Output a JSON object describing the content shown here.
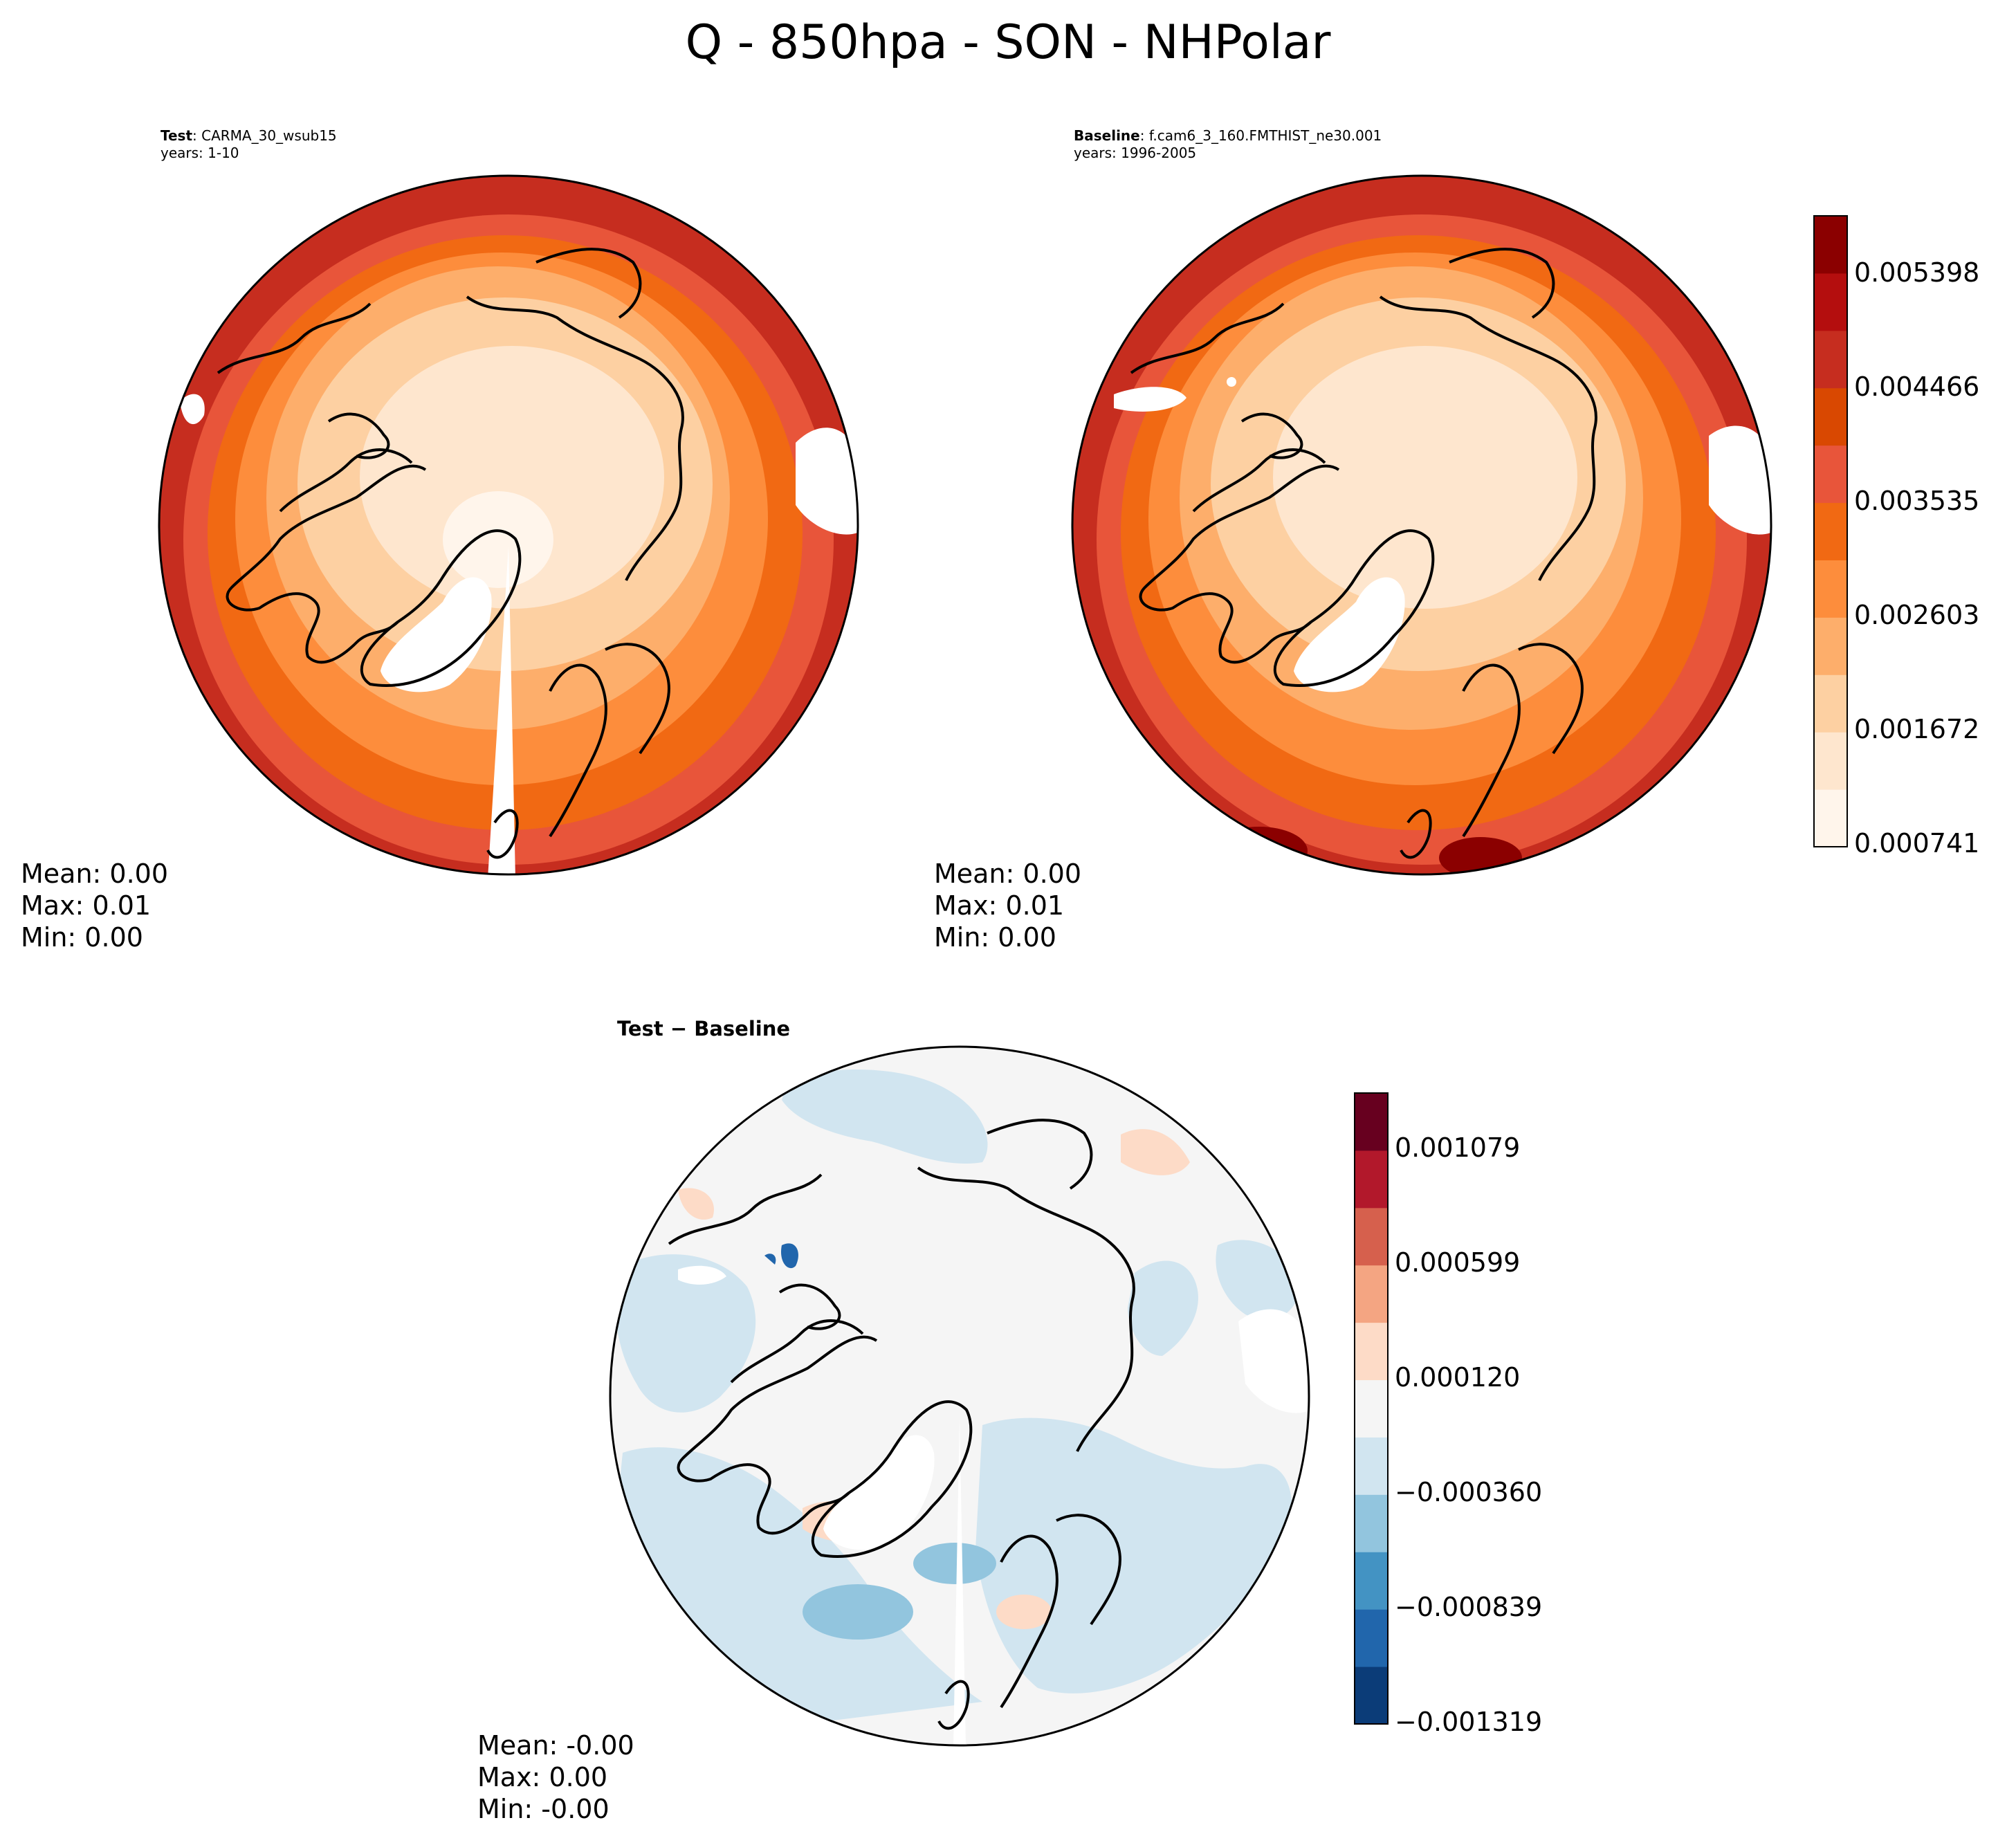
{
  "figure": {
    "title": "Q - 850hpa - SON - NHPolar"
  },
  "panels": {
    "test": {
      "label_bold": "Test",
      "label_rest": ": CARMA_30_wsub15",
      "years": "years: 1-10",
      "stats": {
        "mean": "Mean:  0.00",
        "max": "Max:  0.01",
        "min": "Min:  0.00"
      }
    },
    "baseline": {
      "label_bold": "Baseline",
      "label_rest": ": f.cam6_3_160.FMTHIST_ne30.001",
      "years": "years: 1996-2005",
      "stats": {
        "mean": "Mean:  0.00",
        "max": "Max:  0.01",
        "min": "Min:  0.00"
      }
    },
    "difference": {
      "title": "Test − Baseline",
      "stats": {
        "mean": "Mean: -0.00",
        "max": "Max:  0.00",
        "min": "Min: -0.00"
      }
    }
  },
  "colorbars": {
    "main": {
      "ticks": [
        "0.005398",
        "0.004466",
        "0.003535",
        "0.002603",
        "0.001672",
        "0.000741"
      ],
      "colors": [
        "#fff5eb",
        "#fee6ce",
        "#fdd0a2",
        "#fdae6b",
        "#fd8d3c",
        "#f16913",
        "#e8553a",
        "#d94801",
        "#c62d1f",
        "#b40e0e",
        "#8b0000"
      ]
    },
    "diff": {
      "ticks": [
        "0.001079",
        "0.000599",
        "0.000120",
        "−0.000360",
        "−0.000839",
        "−0.001319"
      ],
      "colors": [
        "#0b3c78",
        "#2166ac",
        "#4393c3",
        "#92c5de",
        "#d1e5f0",
        "#f5f5f5",
        "#fddbc7",
        "#f4a582",
        "#d6604d",
        "#b2182b",
        "#67001f"
      ]
    }
  }
}
